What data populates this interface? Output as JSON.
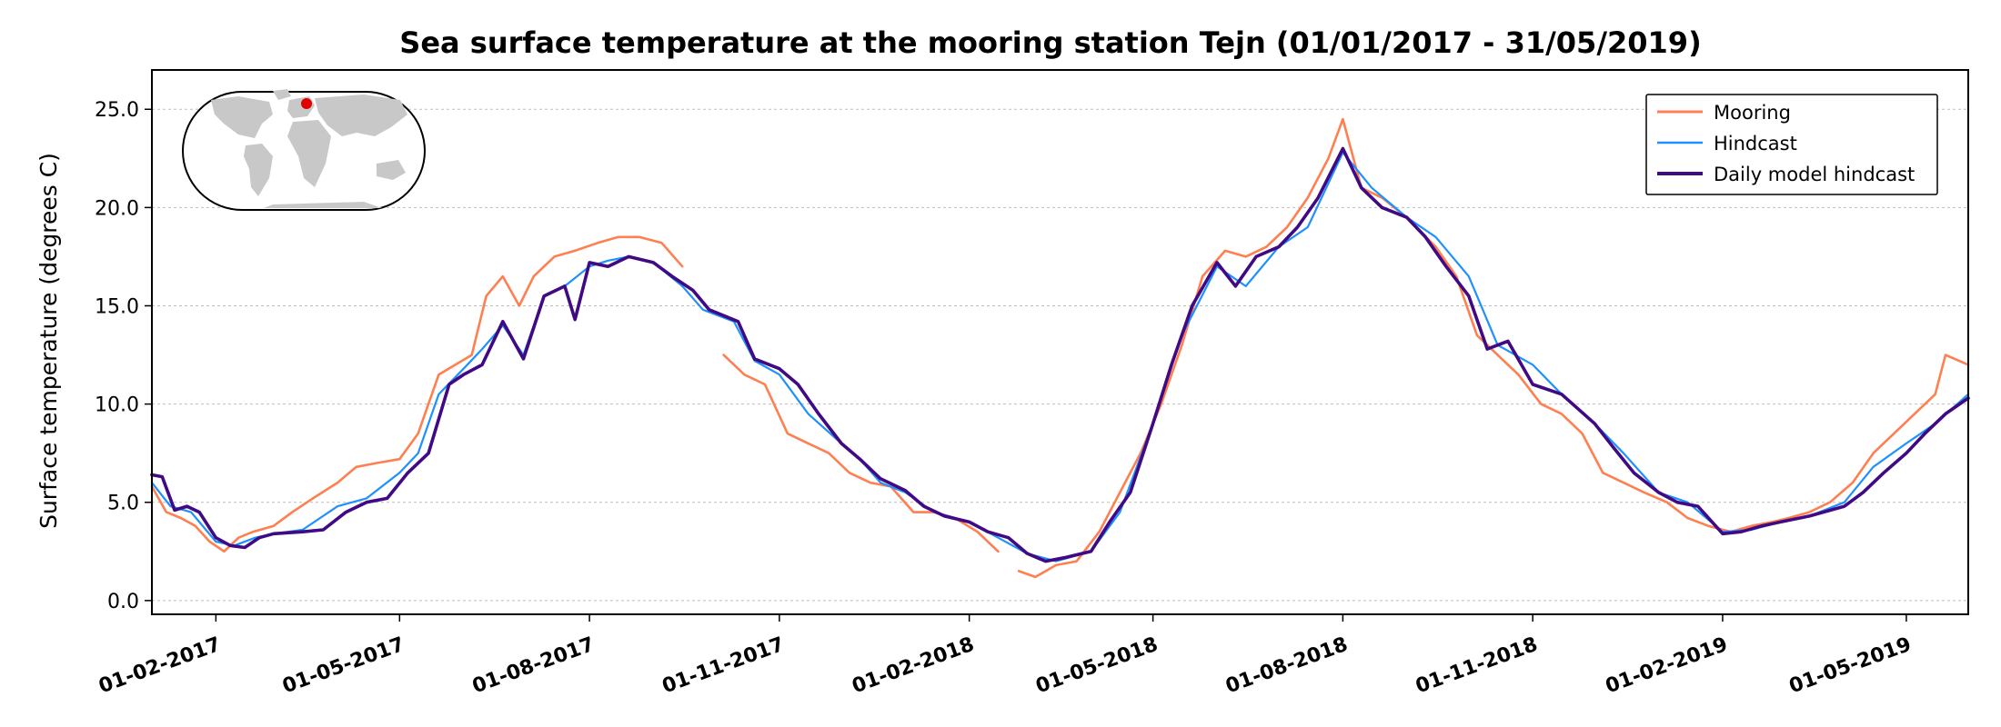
{
  "chart_data": {
    "type": "line",
    "title": "Sea surface temperature at the mooring station Tejn (01/01/2017 - 31/05/2019)",
    "xlabel": "",
    "ylabel": "Surface temperature (degrees C)",
    "xlim": [
      "2017-01-01",
      "2019-05-31"
    ],
    "ylim": [
      -0.7,
      27.0
    ],
    "yticks": [
      0.0,
      5.0,
      10.0,
      15.0,
      20.0,
      25.0
    ],
    "ytick_labels": [
      "0.0",
      "5.0",
      "10.0",
      "15.0",
      "20.0",
      "25.0"
    ],
    "xticks": [
      "2017-02-01",
      "2017-05-01",
      "2017-08-01",
      "2017-11-01",
      "2018-02-01",
      "2018-05-01",
      "2018-08-01",
      "2018-11-01",
      "2019-02-01",
      "2019-05-01"
    ],
    "xtick_labels": [
      "01-02-2017",
      "01-05-2017",
      "01-08-2017",
      "01-11-2017",
      "01-02-2018",
      "01-05-2018",
      "01-08-2018",
      "01-11-2018",
      "01-02-2019",
      "01-05-2019"
    ],
    "grid": "y-dashed",
    "legend_position": "top-right",
    "inset": "world-map-red-dot",
    "series": [
      {
        "name": "Mooring",
        "color": "#ff7f50",
        "points": [
          [
            "2017-01-01",
            5.8
          ],
          [
            "2017-01-08",
            4.5
          ],
          [
            "2017-01-15",
            4.2
          ],
          [
            "2017-01-22",
            3.8
          ],
          [
            "2017-01-29",
            3.0
          ],
          [
            "2017-02-05",
            2.5
          ],
          [
            "2017-02-12",
            3.2
          ],
          [
            "2017-02-19",
            3.5
          ],
          [
            "2017-03-01",
            3.8
          ],
          [
            "2017-03-10",
            4.5
          ],
          [
            "2017-03-20",
            5.2
          ],
          [
            "2017-04-01",
            6.0
          ],
          [
            "2017-04-10",
            6.8
          ],
          [
            "2017-04-20",
            7.0
          ],
          [
            "2017-05-01",
            7.2
          ],
          [
            "2017-05-10",
            8.5
          ],
          [
            "2017-05-20",
            11.5
          ],
          [
            "2017-05-28",
            12.0
          ],
          [
            "2017-06-05",
            12.5
          ],
          [
            "2017-06-12",
            15.5
          ],
          [
            "2017-06-20",
            16.5
          ],
          [
            "2017-06-28",
            15.0
          ],
          [
            "2017-07-05",
            16.5
          ],
          [
            "2017-07-15",
            17.5
          ],
          [
            "2017-07-25",
            17.8
          ],
          [
            "2017-08-05",
            18.2
          ],
          [
            "2017-08-15",
            18.5
          ],
          [
            "2017-08-25",
            18.5
          ],
          [
            "2017-09-05",
            18.2
          ],
          [
            "2017-09-15",
            17.0
          ],
          [
            "2017-10-05",
            12.5
          ],
          [
            "2017-10-15",
            11.5
          ],
          [
            "2017-10-25",
            11.0
          ],
          [
            "2017-11-05",
            8.5
          ],
          [
            "2017-11-15",
            8.0
          ],
          [
            "2017-11-25",
            7.5
          ],
          [
            "2017-12-05",
            6.5
          ],
          [
            "2017-12-15",
            6.0
          ],
          [
            "2017-12-25",
            5.8
          ],
          [
            "2018-01-05",
            4.5
          ],
          [
            "2018-01-15",
            4.5
          ],
          [
            "2018-01-25",
            4.2
          ],
          [
            "2018-02-05",
            3.5
          ],
          [
            "2018-02-15",
            2.5
          ],
          [
            "2018-02-25",
            1.5
          ],
          [
            "2018-03-05",
            1.2
          ],
          [
            "2018-03-15",
            1.8
          ],
          [
            "2018-03-25",
            2.0
          ],
          [
            "2018-04-05",
            3.5
          ],
          [
            "2018-04-15",
            5.5
          ],
          [
            "2018-04-25",
            7.5
          ],
          [
            "2018-05-05",
            10.0
          ],
          [
            "2018-05-15",
            13.0
          ],
          [
            "2018-05-25",
            16.5
          ],
          [
            "2018-06-05",
            17.8
          ],
          [
            "2018-06-15",
            17.5
          ],
          [
            "2018-06-25",
            18.0
          ],
          [
            "2018-07-05",
            19.0
          ],
          [
            "2018-07-15",
            20.5
          ],
          [
            "2018-07-25",
            22.5
          ],
          [
            "2018-08-01",
            24.5
          ],
          [
            "2018-08-10",
            21.0
          ],
          [
            "2018-08-20",
            20.5
          ],
          [
            "2018-09-01",
            19.5
          ],
          [
            "2018-09-15",
            18.0
          ],
          [
            "2018-09-25",
            16.5
          ],
          [
            "2018-10-05",
            13.5
          ],
          [
            "2018-10-15",
            12.5
          ],
          [
            "2018-10-25",
            11.5
          ],
          [
            "2018-11-05",
            10.0
          ],
          [
            "2018-11-15",
            9.5
          ],
          [
            "2018-11-25",
            8.5
          ],
          [
            "2018-12-05",
            6.5
          ],
          [
            "2018-12-15",
            6.0
          ],
          [
            "2018-12-25",
            5.5
          ],
          [
            "2019-01-05",
            5.0
          ],
          [
            "2019-01-15",
            4.2
          ],
          [
            "2019-01-25",
            3.8
          ],
          [
            "2019-02-05",
            3.5
          ],
          [
            "2019-02-15",
            3.8
          ],
          [
            "2019-02-25",
            4.0
          ],
          [
            "2019-03-05",
            4.2
          ],
          [
            "2019-03-15",
            4.5
          ],
          [
            "2019-03-25",
            5.0
          ],
          [
            "2019-04-05",
            6.0
          ],
          [
            "2019-04-15",
            7.5
          ],
          [
            "2019-04-25",
            8.5
          ],
          [
            "2019-05-05",
            9.5
          ],
          [
            "2019-05-15",
            10.5
          ],
          [
            "2019-05-20",
            12.5
          ],
          [
            "2019-05-31",
            12.0
          ]
        ]
      },
      {
        "name": "Hindcast",
        "color": "#1e90ff",
        "points": [
          [
            "2017-01-01",
            6.0
          ],
          [
            "2017-01-10",
            4.8
          ],
          [
            "2017-01-20",
            4.5
          ],
          [
            "2017-02-01",
            3.0
          ],
          [
            "2017-02-10",
            2.8
          ],
          [
            "2017-02-20",
            3.2
          ],
          [
            "2017-03-01",
            3.4
          ],
          [
            "2017-03-15",
            3.6
          ],
          [
            "2017-04-01",
            4.8
          ],
          [
            "2017-04-15",
            5.2
          ],
          [
            "2017-05-01",
            6.5
          ],
          [
            "2017-05-10",
            7.5
          ],
          [
            "2017-05-20",
            10.5
          ],
          [
            "2017-06-01",
            11.8
          ],
          [
            "2017-06-10",
            12.8
          ],
          [
            "2017-06-20",
            14.0
          ],
          [
            "2017-06-30",
            12.5
          ],
          [
            "2017-07-10",
            15.5
          ],
          [
            "2017-07-20",
            16.0
          ],
          [
            "2017-08-01",
            17.0
          ],
          [
            "2017-08-10",
            17.3
          ],
          [
            "2017-08-20",
            17.5
          ],
          [
            "2017-09-01",
            17.2
          ],
          [
            "2017-09-15",
            16.0
          ],
          [
            "2017-09-25",
            14.8
          ],
          [
            "2017-10-10",
            14.2
          ],
          [
            "2017-10-20",
            12.2
          ],
          [
            "2017-11-01",
            11.5
          ],
          [
            "2017-11-15",
            9.5
          ],
          [
            "2017-12-01",
            8.0
          ],
          [
            "2017-12-10",
            7.2
          ],
          [
            "2017-12-20",
            6.0
          ],
          [
            "2018-01-01",
            5.5
          ],
          [
            "2018-01-15",
            4.5
          ],
          [
            "2018-02-01",
            4.0
          ],
          [
            "2018-02-15",
            3.2
          ],
          [
            "2018-03-01",
            2.4
          ],
          [
            "2018-03-15",
            2.0
          ],
          [
            "2018-04-01",
            2.5
          ],
          [
            "2018-04-15",
            4.5
          ],
          [
            "2018-05-01",
            9.0
          ],
          [
            "2018-05-15",
            13.5
          ],
          [
            "2018-06-01",
            17.0
          ],
          [
            "2018-06-15",
            16.0
          ],
          [
            "2018-07-01",
            18.0
          ],
          [
            "2018-07-15",
            19.0
          ],
          [
            "2018-08-01",
            22.8
          ],
          [
            "2018-08-15",
            21.0
          ],
          [
            "2018-09-01",
            19.5
          ],
          [
            "2018-09-15",
            18.5
          ],
          [
            "2018-10-01",
            16.5
          ],
          [
            "2018-10-15",
            13.0
          ],
          [
            "2018-11-01",
            12.0
          ],
          [
            "2018-11-15",
            10.5
          ],
          [
            "2018-12-01",
            9.0
          ],
          [
            "2018-12-15",
            7.5
          ],
          [
            "2019-01-01",
            5.5
          ],
          [
            "2019-01-15",
            5.0
          ],
          [
            "2019-02-01",
            3.5
          ],
          [
            "2019-02-15",
            3.6
          ],
          [
            "2019-03-01",
            4.0
          ],
          [
            "2019-03-15",
            4.3
          ],
          [
            "2019-04-01",
            5.0
          ],
          [
            "2019-04-15",
            6.8
          ],
          [
            "2019-05-01",
            8.0
          ],
          [
            "2019-05-15",
            9.0
          ],
          [
            "2019-05-31",
            10.5
          ]
        ]
      },
      {
        "name": "Daily model hindcast",
        "color": "#3f0a83",
        "points": [
          [
            "2017-01-01",
            6.4
          ],
          [
            "2017-01-06",
            6.3
          ],
          [
            "2017-01-12",
            4.6
          ],
          [
            "2017-01-18",
            4.8
          ],
          [
            "2017-01-24",
            4.5
          ],
          [
            "2017-02-01",
            3.2
          ],
          [
            "2017-02-08",
            2.8
          ],
          [
            "2017-02-15",
            2.7
          ],
          [
            "2017-02-22",
            3.2
          ],
          [
            "2017-03-01",
            3.4
          ],
          [
            "2017-03-15",
            3.5
          ],
          [
            "2017-03-25",
            3.6
          ],
          [
            "2017-04-05",
            4.5
          ],
          [
            "2017-04-15",
            5.0
          ],
          [
            "2017-04-25",
            5.2
          ],
          [
            "2017-05-05",
            6.5
          ],
          [
            "2017-05-15",
            7.5
          ],
          [
            "2017-05-25",
            11.0
          ],
          [
            "2017-06-01",
            11.5
          ],
          [
            "2017-06-10",
            12.0
          ],
          [
            "2017-06-20",
            14.2
          ],
          [
            "2017-06-30",
            12.3
          ],
          [
            "2017-07-10",
            15.5
          ],
          [
            "2017-07-20",
            16.0
          ],
          [
            "2017-07-25",
            14.3
          ],
          [
            "2017-08-01",
            17.2
          ],
          [
            "2017-08-10",
            17.0
          ],
          [
            "2017-08-20",
            17.5
          ],
          [
            "2017-09-01",
            17.2
          ],
          [
            "2017-09-10",
            16.5
          ],
          [
            "2017-09-20",
            15.8
          ],
          [
            "2017-09-28",
            14.8
          ],
          [
            "2017-10-05",
            14.5
          ],
          [
            "2017-10-12",
            14.2
          ],
          [
            "2017-10-20",
            12.3
          ],
          [
            "2017-11-01",
            11.8
          ],
          [
            "2017-11-10",
            11.0
          ],
          [
            "2017-11-20",
            9.5
          ],
          [
            "2017-12-01",
            8.0
          ],
          [
            "2017-12-10",
            7.2
          ],
          [
            "2017-12-20",
            6.2
          ],
          [
            "2018-01-01",
            5.6
          ],
          [
            "2018-01-10",
            4.8
          ],
          [
            "2018-01-20",
            4.3
          ],
          [
            "2018-02-01",
            4.0
          ],
          [
            "2018-02-10",
            3.5
          ],
          [
            "2018-02-20",
            3.2
          ],
          [
            "2018-03-01",
            2.4
          ],
          [
            "2018-03-10",
            2.0
          ],
          [
            "2018-03-20",
            2.2
          ],
          [
            "2018-04-01",
            2.5
          ],
          [
            "2018-04-10",
            4.0
          ],
          [
            "2018-04-20",
            5.5
          ],
          [
            "2018-05-01",
            9.0
          ],
          [
            "2018-05-10",
            12.0
          ],
          [
            "2018-05-20",
            15.0
          ],
          [
            "2018-06-01",
            17.2
          ],
          [
            "2018-06-10",
            16.0
          ],
          [
            "2018-06-20",
            17.5
          ],
          [
            "2018-07-01",
            18.0
          ],
          [
            "2018-07-10",
            19.0
          ],
          [
            "2018-07-20",
            20.5
          ],
          [
            "2018-08-01",
            23.0
          ],
          [
            "2018-08-10",
            21.0
          ],
          [
            "2018-08-20",
            20.0
          ],
          [
            "2018-09-01",
            19.5
          ],
          [
            "2018-09-10",
            18.5
          ],
          [
            "2018-09-20",
            17.0
          ],
          [
            "2018-10-01",
            15.5
          ],
          [
            "2018-10-10",
            12.8
          ],
          [
            "2018-10-20",
            13.2
          ],
          [
            "2018-11-01",
            11.0
          ],
          [
            "2018-11-15",
            10.5
          ],
          [
            "2018-12-01",
            9.0
          ],
          [
            "2018-12-10",
            7.8
          ],
          [
            "2018-12-20",
            6.5
          ],
          [
            "2019-01-01",
            5.5
          ],
          [
            "2019-01-10",
            5.0
          ],
          [
            "2019-01-20",
            4.8
          ],
          [
            "2019-02-01",
            3.4
          ],
          [
            "2019-02-10",
            3.5
          ],
          [
            "2019-02-20",
            3.8
          ],
          [
            "2019-03-01",
            4.0
          ],
          [
            "2019-03-15",
            4.3
          ],
          [
            "2019-04-01",
            4.8
          ],
          [
            "2019-04-10",
            5.5
          ],
          [
            "2019-04-20",
            6.5
          ],
          [
            "2019-05-01",
            7.5
          ],
          [
            "2019-05-10",
            8.5
          ],
          [
            "2019-05-20",
            9.5
          ],
          [
            "2019-05-31",
            10.3
          ]
        ]
      }
    ]
  }
}
